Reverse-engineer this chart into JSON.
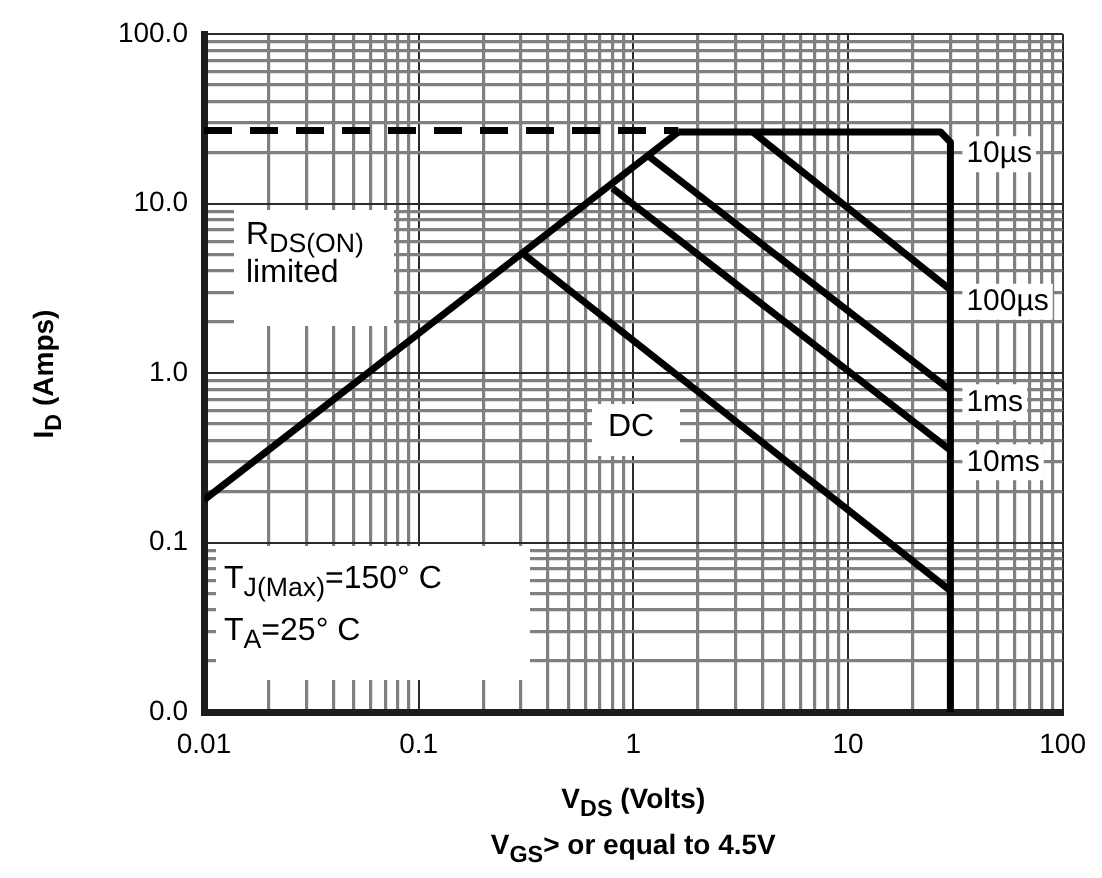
{
  "chart_data": {
    "type": "line",
    "xlabel": "V$_{DS}$ (Volts)",
    "ylabel": "I$_{D}$ (Amps)",
    "log": "xy",
    "grid": true,
    "legend": false,
    "marker": "none",
    "xlim": [
      0.01,
      100
    ],
    "ylim": [
      0.01,
      100
    ],
    "xticks": [
      0.01,
      0.1,
      1,
      10,
      100
    ],
    "yticks": [
      {
        "value": 0.01,
        "label": "0.0"
      },
      0.1,
      {
        "value": 1,
        "label": "1.0"
      },
      {
        "value": 10,
        "label": "10.0"
      },
      {
        "value": 100,
        "label": "100.0"
      }
    ],
    "series": [
      {
        "color": "#000000",
        "line_style": "dashed",
        "x": [
          0.01,
          1.62
        ],
        "values": [
          27,
          27
        ]
      },
      {
        "color": "#000000",
        "x": [
          0.01,
          1.62
        ],
        "values": [
          0.178,
          26.4
        ]
      },
      {
        "name": "10µs",
        "color": "#000000",
        "x": [
          1.62,
          27,
          30,
          30
        ],
        "values": [
          26.4,
          26.4,
          23,
          0.01
        ]
      },
      {
        "name": "100µs",
        "color": "#000000",
        "x": [
          3.6,
          30
        ],
        "values": [
          26.4,
          3.1
        ]
      },
      {
        "name": "1ms",
        "color": "#000000",
        "x": [
          1.18,
          30
        ],
        "values": [
          19,
          0.79
        ]
      },
      {
        "name": "10ms",
        "color": "#000000",
        "x": [
          0.8,
          30
        ],
        "values": [
          12.3,
          0.35
        ]
      },
      {
        "color": "#000000",
        "x": [
          0.31,
          30
        ],
        "values": [
          5,
          0.052
        ]
      }
    ],
    "annotations": [
      "R$_{DS(ON)}$ limited",
      "T$_{J(Max)}$=150° C",
      "T$_{A}$=25° C",
      "DC",
      "V$_{GS}$> or equal to 4.5V"
    ]
  }
}
